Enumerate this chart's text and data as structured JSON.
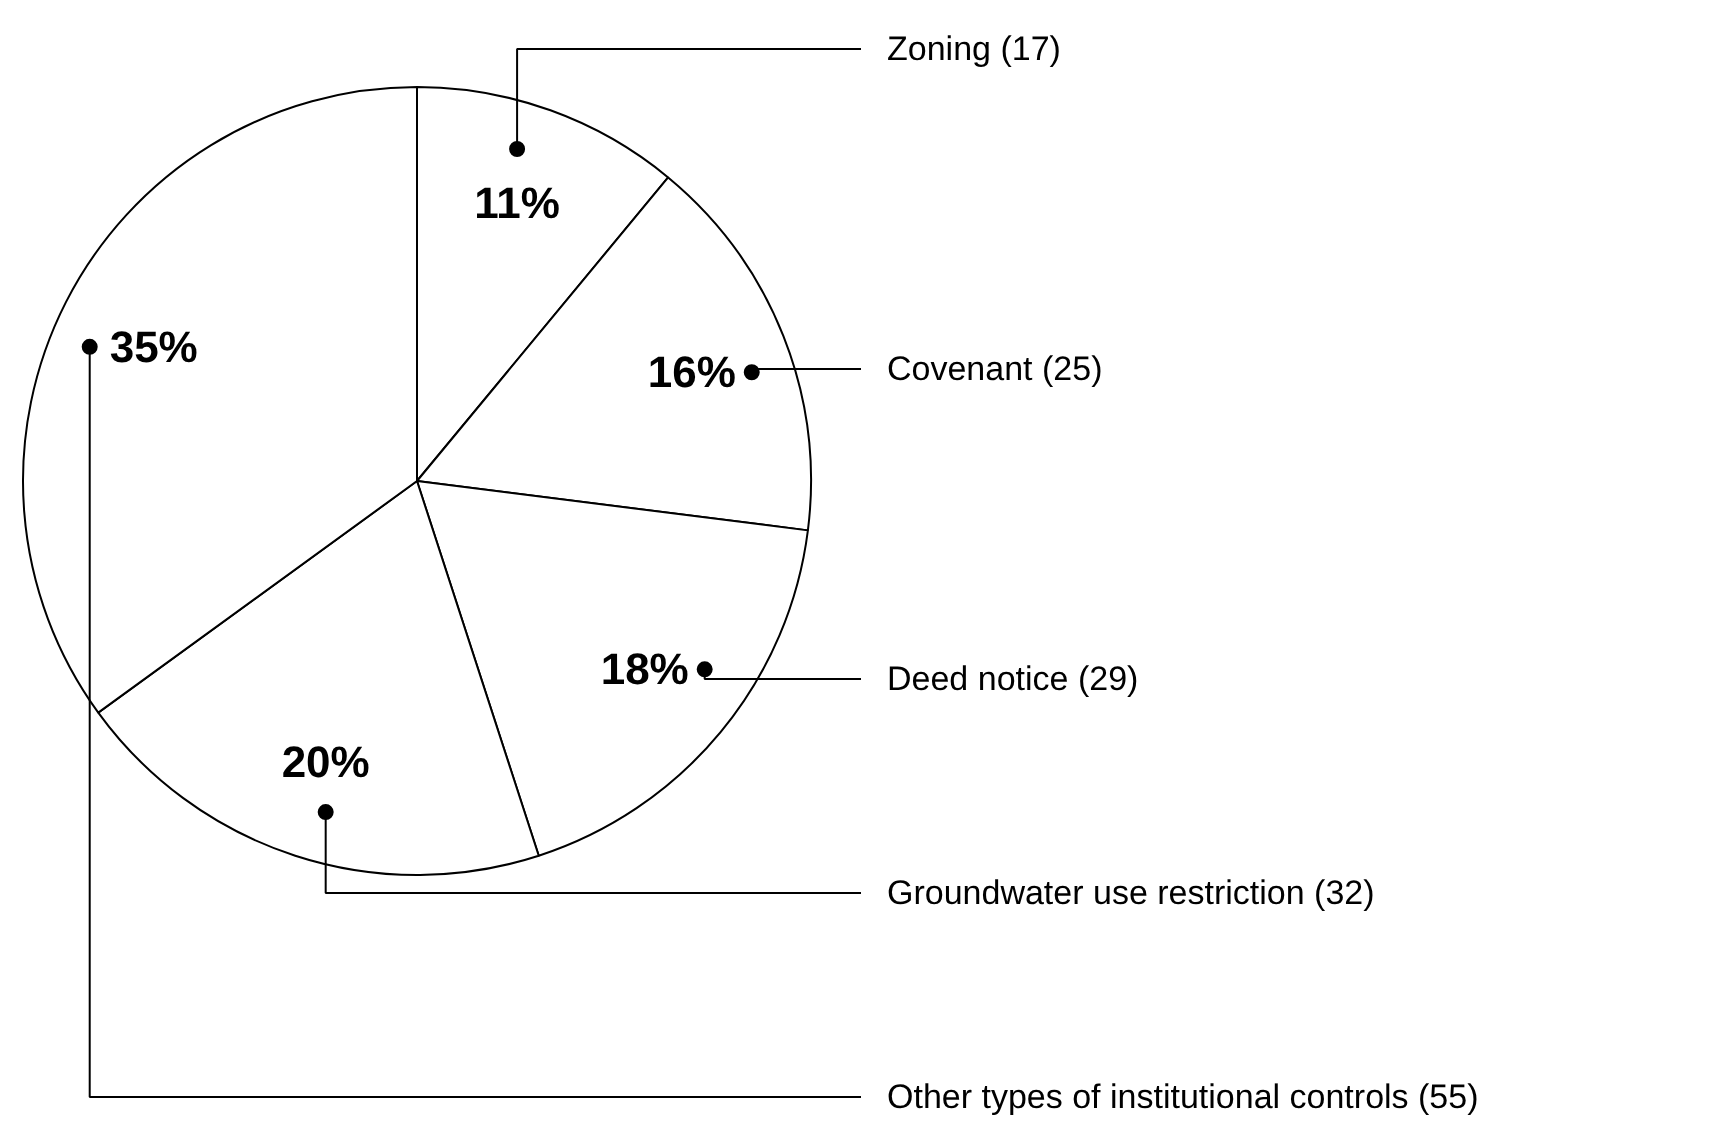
{
  "chart_data": {
    "type": "pie",
    "categories": [
      "Zoning (17)",
      "Covenant (25)",
      "Deed notice (29)",
      "Groundwater use restriction (32)",
      "Other types of institutional controls (55)"
    ],
    "values": [
      11,
      16,
      18,
      20,
      35
    ],
    "colors": [
      "#ffffff",
      "#ffffff",
      "#ffffff",
      "#ffffff",
      "#ffffff"
    ],
    "value_labels": [
      "11%",
      "16%",
      "18%",
      "20%",
      "35%"
    ]
  }
}
